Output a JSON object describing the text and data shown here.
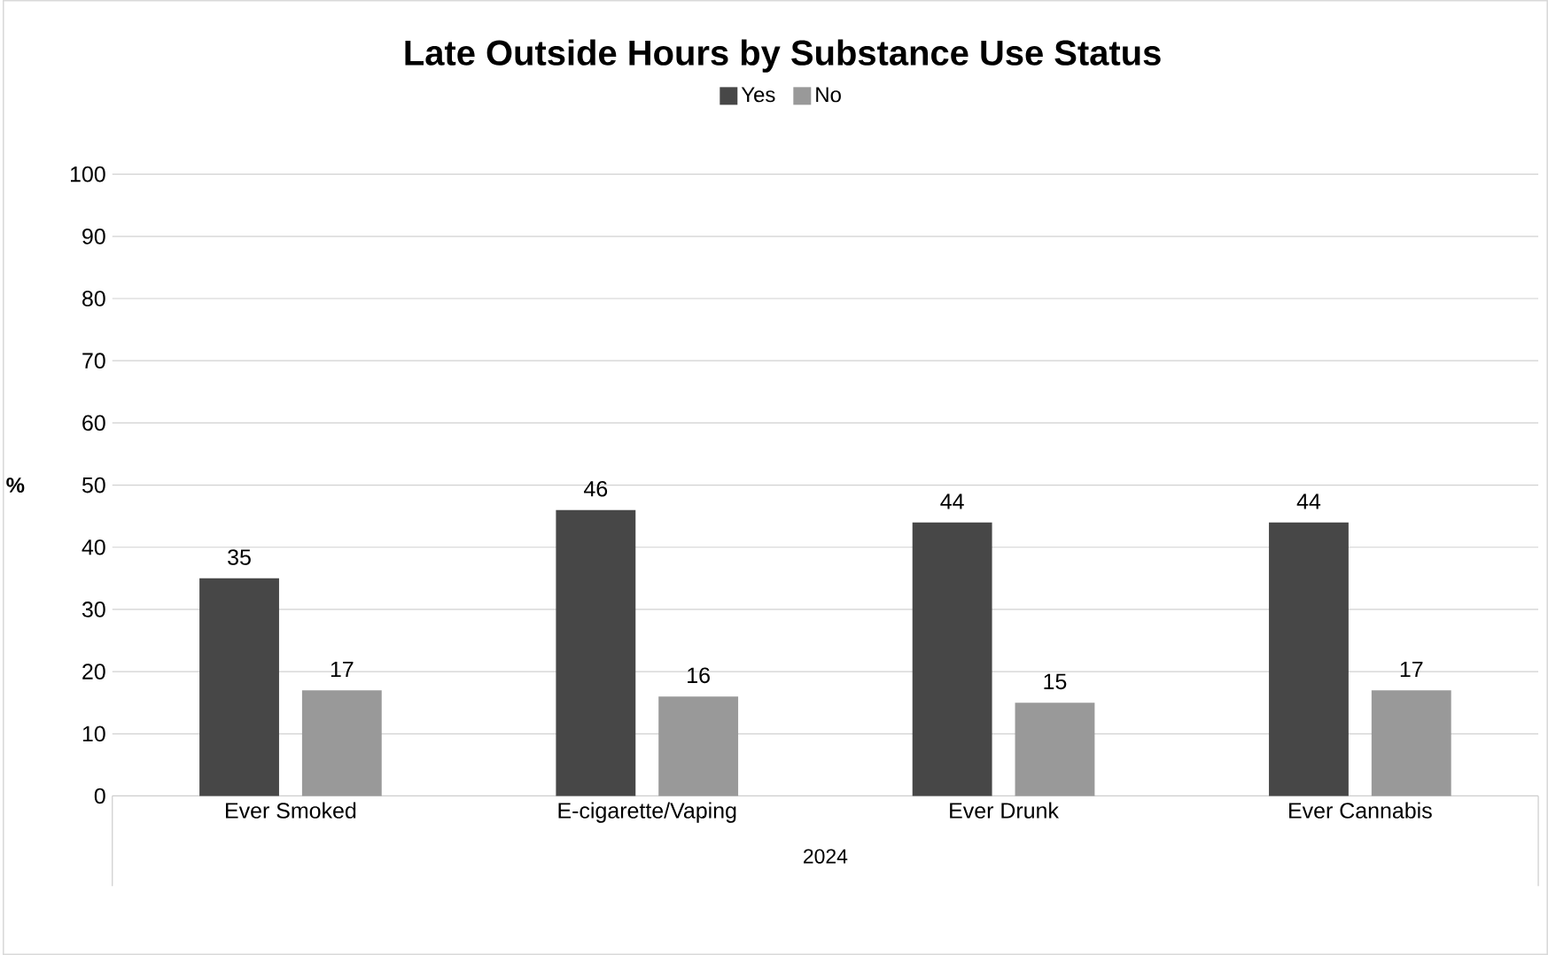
{
  "chart_data": {
    "type": "bar",
    "title": "Late Outside Hours by Substance Use Status",
    "xlabel": "2024",
    "ylabel": "%",
    "categories": [
      "Ever Smoked",
      "E-cigarette/Vaping",
      "Ever Drunk",
      "Ever Cannabis"
    ],
    "series": [
      {
        "name": "Yes",
        "color": "#474747",
        "values": [
          35,
          46,
          44,
          44
        ]
      },
      {
        "name": "No",
        "color": "#999999",
        "values": [
          17,
          16,
          15,
          17
        ]
      }
    ],
    "ylim": [
      0,
      100
    ],
    "yticks": [
      0,
      10,
      20,
      30,
      40,
      50,
      60,
      70,
      80,
      90,
      100
    ],
    "grid": "y",
    "legend": "top",
    "data_labels": true
  }
}
